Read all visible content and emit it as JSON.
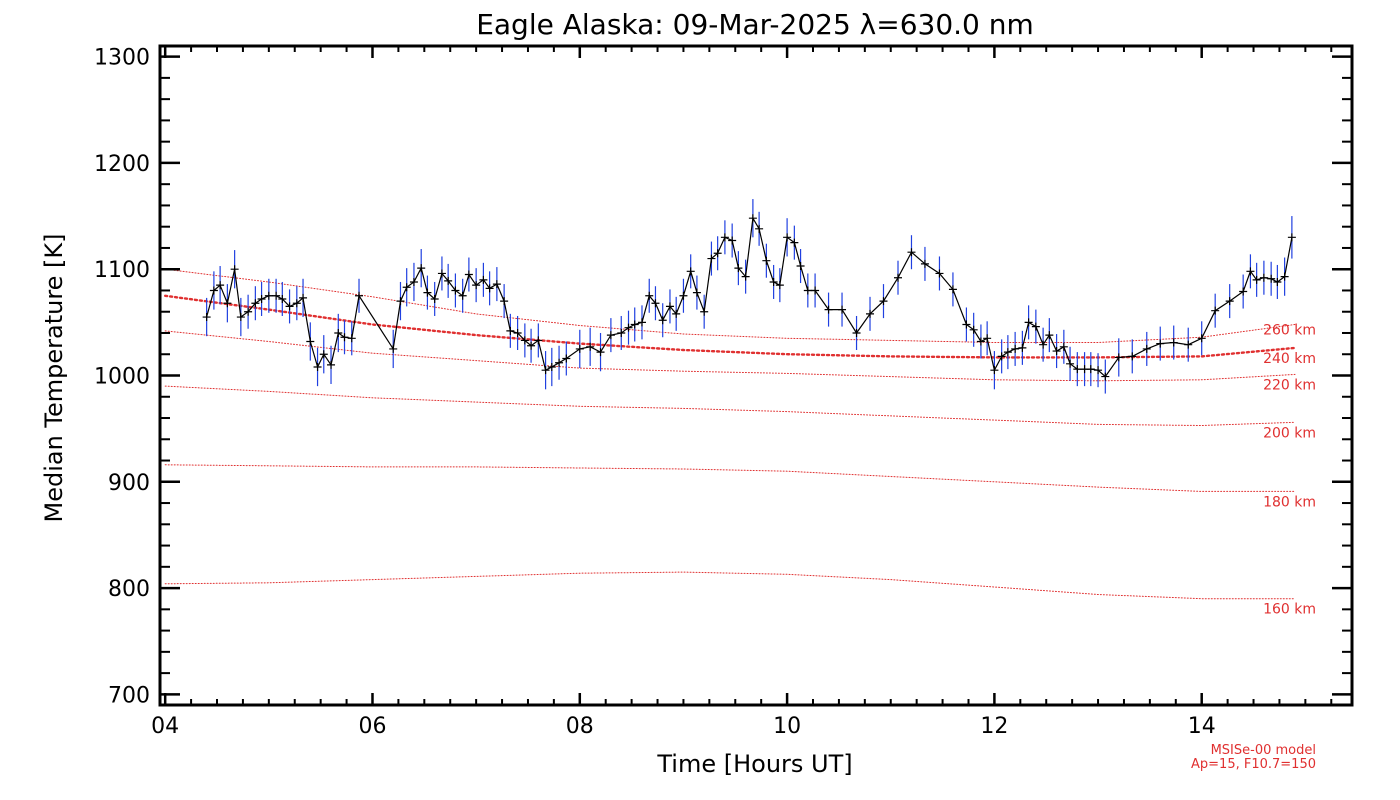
{
  "chart_data": {
    "type": "line",
    "title": "Eagle Alaska: 09-Mar-2025 λ=630.0 nm",
    "xlabel": "Time [Hours UT]",
    "ylabel": "Median Temperature [K]",
    "xlim": [
      3.95,
      15.45
    ],
    "ylim": [
      690,
      1310
    ],
    "x_ticks": [
      4,
      6,
      8,
      10,
      12,
      14
    ],
    "x_tick_labels": [
      "04",
      "06",
      "08",
      "10",
      "12",
      "14"
    ],
    "y_ticks": [
      700,
      800,
      900,
      1000,
      1100,
      1200,
      1300
    ],
    "y_tick_labels": [
      "700",
      "800",
      "900",
      "1000",
      "1100",
      "1200",
      "1300"
    ],
    "colors": {
      "measured": "#000000",
      "error_bars": "#2040e0",
      "model": "#e03030",
      "axes": "#000000"
    },
    "series": [
      {
        "name": "Median temperature",
        "x": [
          4.4,
          4.47,
          4.53,
          4.6,
          4.67,
          4.73,
          4.8,
          4.87,
          4.93,
          5.0,
          5.07,
          5.13,
          5.2,
          5.27,
          5.33,
          5.4,
          5.47,
          5.53,
          5.6,
          5.67,
          5.73,
          5.8,
          5.87,
          6.2,
          6.27,
          6.33,
          6.4,
          6.47,
          6.53,
          6.6,
          6.67,
          6.73,
          6.8,
          6.87,
          6.93,
          7.0,
          7.07,
          7.13,
          7.2,
          7.27,
          7.33,
          7.4,
          7.47,
          7.53,
          7.6,
          7.67,
          7.73,
          7.8,
          7.87,
          8.0,
          8.1,
          8.2,
          8.3,
          8.4,
          8.47,
          8.53,
          8.6,
          8.67,
          8.73,
          8.8,
          8.87,
          8.93,
          9.0,
          9.07,
          9.13,
          9.2,
          9.27,
          9.33,
          9.4,
          9.47,
          9.53,
          9.6,
          9.67,
          9.73,
          9.8,
          9.87,
          9.93,
          10.0,
          10.07,
          10.13,
          10.2,
          10.27,
          10.4,
          10.53,
          10.67,
          10.8,
          10.93,
          11.07,
          11.2,
          11.33,
          11.47,
          11.6,
          11.73,
          11.8,
          11.87,
          11.93,
          12.0,
          12.07,
          12.13,
          12.2,
          12.27,
          12.33,
          12.4,
          12.47,
          12.53,
          12.6,
          12.67,
          12.73,
          12.8,
          12.87,
          12.93,
          13.0,
          13.07,
          13.2,
          13.33,
          13.47,
          13.6,
          13.73,
          13.87,
          14.0,
          14.13,
          14.27,
          14.4,
          14.47,
          14.53,
          14.6,
          14.67,
          14.73,
          14.8,
          14.87
        ],
        "values": [
          1055,
          1080,
          1085,
          1068,
          1100,
          1055,
          1060,
          1068,
          1072,
          1075,
          1075,
          1072,
          1065,
          1068,
          1073,
          1032,
          1008,
          1020,
          1010,
          1040,
          1036,
          1035,
          1075,
          1025,
          1070,
          1083,
          1088,
          1101,
          1078,
          1072,
          1096,
          1089,
          1080,
          1075,
          1095,
          1085,
          1090,
          1082,
          1086,
          1070,
          1042,
          1040,
          1033,
          1028,
          1033,
          1005,
          1008,
          1012,
          1016,
          1025,
          1027,
          1022,
          1038,
          1040,
          1045,
          1048,
          1050,
          1075,
          1068,
          1052,
          1065,
          1058,
          1075,
          1098,
          1078,
          1060,
          1110,
          1115,
          1130,
          1127,
          1101,
          1093,
          1148,
          1138,
          1108,
          1088,
          1085,
          1130,
          1125,
          1103,
          1080,
          1080,
          1062,
          1062,
          1040,
          1058,
          1070,
          1092,
          1116,
          1105,
          1096,
          1081,
          1048,
          1043,
          1032,
          1035,
          1005,
          1018,
          1022,
          1025,
          1026,
          1050,
          1046,
          1029,
          1038,
          1023,
          1027,
          1011,
          1006,
          1006,
          1006,
          1005,
          999,
          1017,
          1018,
          1025,
          1030,
          1031,
          1029,
          1035,
          1061,
          1070,
          1079,
          1098,
          1090,
          1092,
          1091,
          1088,
          1093,
          1130
        ],
        "errors": [
          18,
          18,
          18,
          18,
          18,
          18,
          16,
          16,
          16,
          16,
          16,
          16,
          16,
          16,
          18,
          18,
          18,
          18,
          18,
          18,
          16,
          16,
          16,
          18,
          18,
          18,
          18,
          18,
          16,
          16,
          16,
          16,
          16,
          16,
          16,
          16,
          16,
          16,
          16,
          16,
          16,
          16,
          16,
          16,
          16,
          18,
          18,
          16,
          16,
          18,
          18,
          18,
          16,
          16,
          16,
          16,
          16,
          16,
          16,
          16,
          16,
          16,
          16,
          16,
          16,
          16,
          16,
          16,
          16,
          16,
          16,
          16,
          18,
          16,
          16,
          16,
          16,
          18,
          16,
          16,
          16,
          16,
          16,
          16,
          16,
          16,
          16,
          16,
          16,
          16,
          16,
          16,
          16,
          16,
          16,
          16,
          18,
          16,
          16,
          16,
          16,
          16,
          16,
          16,
          16,
          16,
          16,
          16,
          16,
          16,
          16,
          16,
          16,
          18,
          16,
          16,
          16,
          16,
          16,
          16,
          16,
          16,
          16,
          16,
          16,
          16,
          16,
          16,
          18,
          20
        ]
      }
    ],
    "model_curves": [
      {
        "label": "260 km",
        "x": [
          4.0,
          5.0,
          6.0,
          7.0,
          8.0,
          9.0,
          10.0,
          11.0,
          12.0,
          13.0,
          14.0,
          14.9
        ],
        "values": [
          1100,
          1088,
          1074,
          1058,
          1047,
          1039,
          1035,
          1033,
          1031,
          1031,
          1036,
          1048
        ]
      },
      {
        "label": "240 km",
        "x": [
          4.0,
          5.0,
          6.0,
          7.0,
          8.0,
          9.0,
          10.0,
          11.0,
          12.0,
          13.0,
          14.0,
          14.9
        ],
        "values": [
          1075,
          1062,
          1048,
          1038,
          1030,
          1024,
          1020,
          1018,
          1017,
          1017,
          1018,
          1026
        ]
      },
      {
        "label": "220 km",
        "x": [
          4.0,
          5.0,
          6.0,
          7.0,
          8.0,
          9.0,
          10.0,
          11.0,
          12.0,
          13.0,
          14.0,
          14.9
        ],
        "values": [
          1042,
          1032,
          1021,
          1014,
          1007,
          1004,
          1002,
          999,
          996,
          995,
          996,
          1001
        ]
      },
      {
        "label": "200 km",
        "x": [
          4.0,
          5.0,
          6.0,
          7.0,
          8.0,
          9.0,
          10.0,
          11.0,
          12.0,
          13.0,
          14.0,
          14.9
        ],
        "values": [
          990,
          985,
          979,
          975,
          971,
          969,
          966,
          962,
          958,
          954,
          953,
          956
        ]
      },
      {
        "label": "180 km",
        "x": [
          4.0,
          5.0,
          6.0,
          7.0,
          8.0,
          9.0,
          10.0,
          11.0,
          12.0,
          13.0,
          14.0,
          14.9
        ],
        "values": [
          916,
          915,
          914,
          914,
          913,
          912,
          910,
          905,
          900,
          895,
          891,
          891
        ]
      },
      {
        "label": "160 km",
        "x": [
          4.0,
          5.0,
          6.0,
          7.0,
          8.0,
          9.0,
          10.0,
          11.0,
          12.0,
          13.0,
          14.0,
          14.9
        ],
        "values": [
          804,
          805,
          808,
          811,
          814,
          815,
          813,
          808,
          801,
          794,
          790,
          790
        ]
      }
    ],
    "model_line_styles": {
      "thick": [
        "240 km"
      ]
    },
    "legend_note": [
      "MSISe-00 model",
      "Ap=15, F10.7=150"
    ]
  }
}
